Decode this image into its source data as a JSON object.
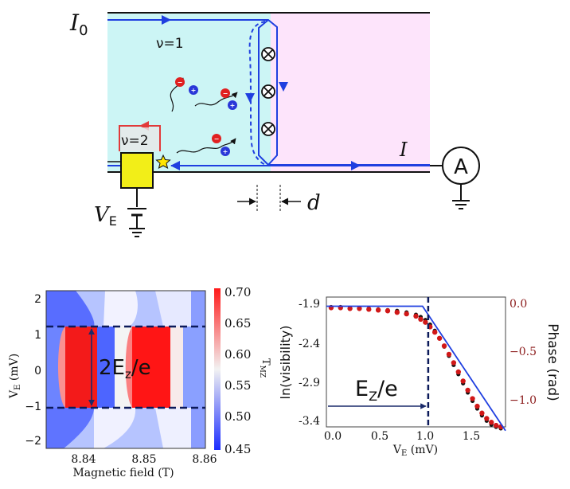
{
  "schematic": {
    "input_current": "I",
    "input_subscript": "0",
    "output_current": "I",
    "filling_1": "ν=1",
    "filling_2": "ν=2",
    "ammeter": "A",
    "voltage_label": "V",
    "voltage_subscript": "E",
    "distance_label": "d",
    "colors": {
      "left_region": "#ccf5f5",
      "right_region": "#fde4fb",
      "edge_channel": "#1f3fe0",
      "outer_edge": "#e23a3a",
      "contact": "#f2ee18",
      "electron": "#e02020",
      "hole": "#2a37d8"
    }
  },
  "heatmap": {
    "ylabel": "V",
    "ylabel_sub": "E",
    "ylabel_unit": "(mV)",
    "xlabel": "Magnetic field (T)",
    "x_ticks": [
      "8.84",
      "8.85",
      "8.86"
    ],
    "y_ticks": [
      "2",
      "1",
      "0",
      "−1",
      "−2"
    ],
    "colorbar_label": "T",
    "colorbar_sub": "MZ",
    "colorbar_ticks": [
      "0.70",
      "0.65",
      "0.60",
      "0.55",
      "0.50",
      "0.45"
    ],
    "annotation": "2E",
    "annotation_sub": "z",
    "annotation_tail": "/e"
  },
  "chart_data": {
    "type": "scatter",
    "xlabel": "V",
    "xlabel_sub": "E",
    "xlabel_unit": "(mV)",
    "ylabel": "ln(visibility)",
    "y2label": "Phase (rad)",
    "xlim": [
      0.0,
      1.9
    ],
    "ylim": [
      -3.5,
      -1.8
    ],
    "y2lim": [
      -1.24,
      0.12
    ],
    "x_ticks": [
      "0.0",
      "0.5",
      "1.0",
      "1.5"
    ],
    "y_ticks": [
      "-1.9",
      "-2.4",
      "-2.9",
      "-3.4"
    ],
    "y2_ticks": [
      "0.0",
      "−0.5",
      "−1.0"
    ],
    "annotation": "E",
    "annotation_sub": "Z",
    "annotation_tail": "/e",
    "threshold_x": 1.08,
    "series": [
      {
        "color": "#111111",
        "x": [
          0.05,
          0.15,
          0.25,
          0.35,
          0.45,
          0.55,
          0.65,
          0.75,
          0.85,
          0.95,
          1.0,
          1.05,
          1.1,
          1.15,
          1.2,
          1.25,
          1.3,
          1.35,
          1.4,
          1.45,
          1.5,
          1.55,
          1.6,
          1.65,
          1.7,
          1.75,
          1.8,
          1.85
        ],
        "values": [
          -1.93,
          -1.93,
          -1.94,
          -1.94,
          -1.95,
          -1.96,
          -1.97,
          -1.98,
          -2.0,
          -2.03,
          -2.06,
          -2.1,
          -2.16,
          -2.24,
          -2.34,
          -2.45,
          -2.57,
          -2.69,
          -2.81,
          -2.93,
          -3.05,
          -3.16,
          -3.26,
          -3.35,
          -3.42,
          -3.47,
          -3.5,
          -3.52
        ]
      },
      {
        "color": "#d11818",
        "x": [
          0.05,
          0.15,
          0.25,
          0.35,
          0.45,
          0.55,
          0.65,
          0.75,
          0.85,
          0.95,
          1.0,
          1.05,
          1.1,
          1.15,
          1.2,
          1.25,
          1.3,
          1.35,
          1.4,
          1.45,
          1.5,
          1.55,
          1.6,
          1.65,
          1.7,
          1.75,
          1.8,
          1.85
        ],
        "values": [
          -1.94,
          -1.94,
          -1.95,
          -1.95,
          -1.96,
          -1.97,
          -1.98,
          -2.0,
          -2.02,
          -2.05,
          -2.09,
          -2.13,
          -2.19,
          -2.26,
          -2.34,
          -2.44,
          -2.55,
          -2.66,
          -2.78,
          -2.9,
          -3.02,
          -3.13,
          -3.23,
          -3.32,
          -3.39,
          -3.44,
          -3.48,
          -3.5
        ]
      },
      {
        "color": "#1f3fe0",
        "type": "fit",
        "x": [
          0.0,
          1.02,
          1.9
        ],
        "values": [
          -1.92,
          -1.92,
          -3.55
        ]
      }
    ]
  }
}
